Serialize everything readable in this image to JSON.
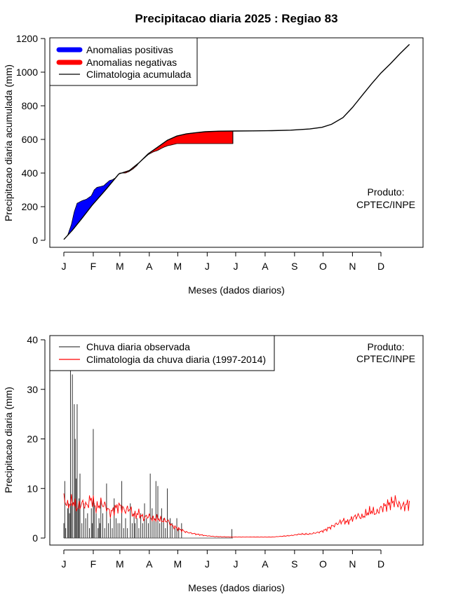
{
  "title": "Precipitacao diaria 2025 : Regiao 83",
  "product_note": [
    "Produto:",
    "CPTEC/INPE"
  ],
  "colors": {
    "positive": "#0000ff",
    "negative": "#ff0000",
    "climatology": "#000000",
    "observed": "#000000",
    "daily_climatology": "#ff0000"
  },
  "chart_data": [
    {
      "type": "area",
      "xlabel": "Meses (dados diarios)",
      "ylabel": "Precipitacao diaria acumulada (mm)",
      "ylim": [
        0,
        1200
      ],
      "y_ticks": [
        "0",
        "200",
        "400",
        "600",
        "800",
        "1000",
        "1200"
      ],
      "x_ticks": [
        "J",
        "F",
        "M",
        "A",
        "M",
        "J",
        "J",
        "A",
        "S",
        "O",
        "N",
        "D"
      ],
      "legend": [
        "Anomalias positivas",
        "Anomalias negativas",
        "Climatologia acumulada"
      ],
      "legend_position": "top-left",
      "x_unit": "day of year",
      "climatology": {
        "x": [
          1,
          10,
          20,
          31,
          45,
          59,
          70,
          80,
          90,
          100,
          110,
          120,
          130,
          140,
          150,
          165,
          181,
          200,
          220,
          240,
          260,
          273,
          283,
          295,
          305,
          315,
          325,
          335,
          345,
          355,
          365
        ],
        "y": [
          5,
          60,
          130,
          210,
          300,
          395,
          415,
          460,
          515,
          555,
          595,
          620,
          633,
          640,
          646,
          649,
          650,
          651,
          652,
          655,
          662,
          672,
          690,
          730,
          790,
          860,
          930,
          995,
          1050,
          1110,
          1165
        ]
      },
      "observed": {
        "x": [
          1,
          5,
          9,
          12,
          15,
          20,
          25,
          30,
          33,
          36,
          40,
          43,
          46,
          49,
          52,
          55,
          58,
          60,
          66,
          70,
          74,
          78,
          80,
          85,
          90,
          95,
          100,
          105,
          110,
          115,
          120,
          125,
          130,
          140,
          150,
          160,
          170,
          179
        ],
        "y": [
          5,
          30,
          95,
          170,
          220,
          235,
          245,
          265,
          300,
          315,
          320,
          325,
          340,
          355,
          360,
          370,
          390,
          400,
          400,
          410,
          425,
          445,
          460,
          485,
          510,
          525,
          535,
          550,
          562,
          568,
          575,
          575,
          575,
          575,
          575,
          575,
          575,
          575
        ]
      }
    },
    {
      "type": "bar",
      "xlabel": "Meses (dados diarios)",
      "ylabel": "Precipitacao diaria (mm)",
      "ylim": [
        0,
        40
      ],
      "y_ticks": [
        "0",
        "10",
        "20",
        "30",
        "40"
      ],
      "x_ticks": [
        "J",
        "F",
        "M",
        "A",
        "M",
        "J",
        "J",
        "A",
        "S",
        "O",
        "N",
        "D"
      ],
      "legend": [
        "Chuva diaria observada",
        "Climatologia da chuva diaria (1997-2014)"
      ],
      "legend_position": "top-left",
      "x_unit": "day of year",
      "observed_rain": {
        "x": [
          1,
          2,
          3,
          5,
          6,
          7,
          8,
          9,
          10,
          12,
          13,
          14,
          15,
          16,
          17,
          18,
          20,
          22,
          24,
          26,
          28,
          30,
          31,
          32,
          33,
          35,
          37,
          38,
          39,
          40,
          42,
          44,
          46,
          48,
          50,
          52,
          54,
          56,
          58,
          60,
          62,
          64,
          66,
          68,
          71,
          73,
          75,
          76,
          78,
          80,
          82,
          84,
          86,
          88,
          90,
          92,
          94,
          96,
          98,
          100,
          102,
          104,
          106,
          108,
          110,
          113,
          115,
          118,
          120,
          122,
          125,
          178
        ],
        "y": [
          3,
          11.5,
          2,
          6,
          7,
          5,
          35,
          7,
          33,
          27,
          20,
          12,
          27,
          6,
          8,
          13,
          3,
          7,
          4,
          5,
          2,
          6,
          3,
          22,
          7,
          5,
          2,
          4,
          3,
          8,
          5,
          2,
          11,
          3,
          4,
          2,
          8,
          4,
          3,
          3,
          11.5,
          2,
          4,
          2,
          7,
          3,
          5,
          3,
          4,
          2,
          5,
          3,
          7,
          4,
          3,
          13,
          6,
          4,
          11.5,
          10.5,
          3,
          6,
          4,
          2,
          10,
          4,
          3,
          2,
          4,
          2,
          3,
          1.8
        ]
      },
      "daily_climatology": {
        "x": [
          1,
          5,
          10,
          15,
          20,
          25,
          30,
          35,
          40,
          45,
          50,
          55,
          60,
          65,
          70,
          75,
          80,
          85,
          90,
          95,
          100,
          105,
          110,
          115,
          120,
          130,
          140,
          150,
          160,
          180,
          200,
          220,
          240,
          250,
          260,
          270,
          275,
          280,
          285,
          290,
          295,
          300,
          305,
          310,
          315,
          320,
          325,
          330,
          335,
          340,
          345,
          350,
          355,
          360,
          365
        ],
        "y": [
          8,
          6.5,
          7.5,
          6,
          7,
          6.5,
          8,
          6,
          7,
          6.5,
          5,
          6,
          6.5,
          5.5,
          6,
          4.5,
          5,
          4,
          4.5,
          3.8,
          4,
          3.5,
          3.5,
          2.5,
          2,
          1.2,
          0.8,
          0.5,
          0.3,
          0.2,
          0.2,
          0.2,
          0.5,
          0.8,
          0.8,
          1.2,
          1.5,
          2,
          2.5,
          3,
          3.5,
          3.2,
          4,
          4.5,
          4.2,
          5,
          5.5,
          5,
          6,
          6.5,
          7,
          7.5,
          6.5,
          6.5,
          7
        ]
      }
    }
  ]
}
